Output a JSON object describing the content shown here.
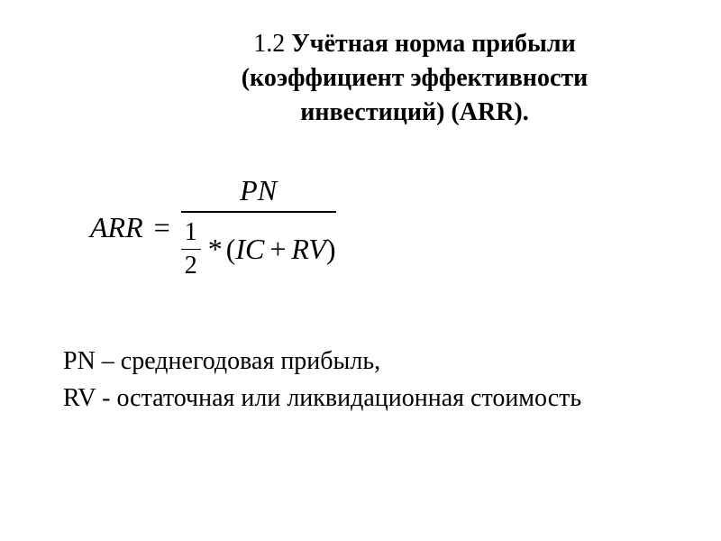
{
  "title": {
    "prefix": "1.2 ",
    "line1_bold": "Учётная норма прибыли",
    "line2_bold": "(коэффициент эффективности",
    "line3_bold": "инвестиций) (ARR)."
  },
  "formula": {
    "lhs": "ARR",
    "equals": "=",
    "numerator": "PN",
    "denom_frac_num": "1",
    "denom_frac_denom": "2",
    "denom_star": "*",
    "denom_open": "(",
    "denom_var1": "IC",
    "denom_plus": "+",
    "denom_var2": "RV",
    "denom_close": ")"
  },
  "definitions": {
    "line1": "PN – среднегодовая прибыль,",
    "line2": "RV -  остаточная или ликвидационная стоимость"
  },
  "style": {
    "background_color": "#ffffff",
    "text_color": "#000000",
    "title_fontsize": 28,
    "formula_fontsize": 32,
    "def_fontsize": 28,
    "font_family": "Times New Roman"
  }
}
